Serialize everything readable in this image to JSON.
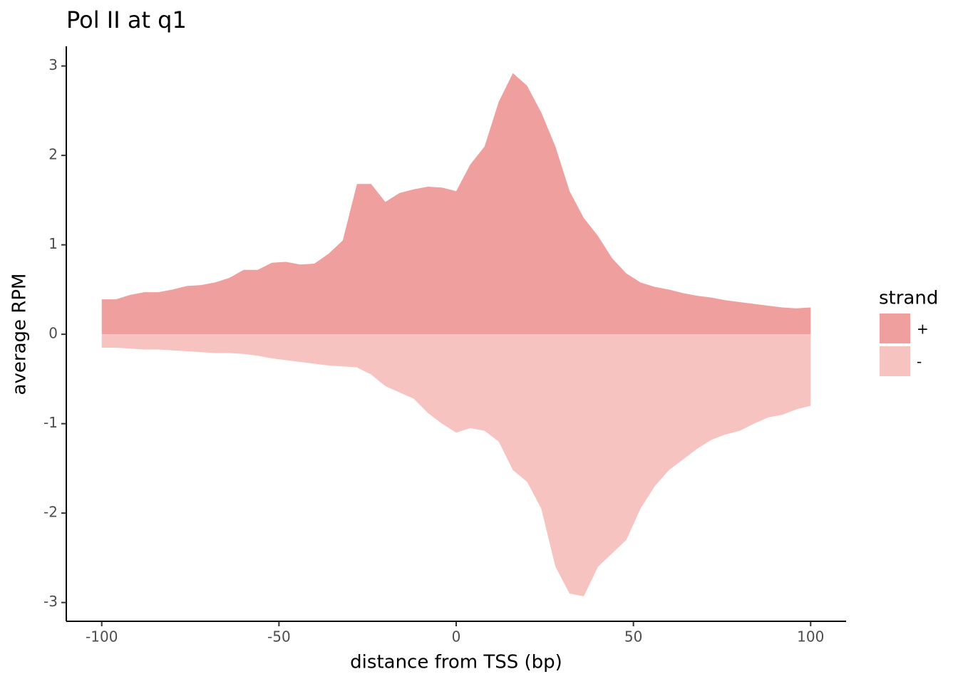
{
  "chart_data": {
    "type": "area",
    "title": "Pol II at q1",
    "x_label": "distance from TSS (bp)",
    "y_label": "average RPM",
    "legend_title": "strand",
    "legend_position": "right",
    "x": [
      -100,
      -96,
      -92,
      -88,
      -84,
      -80,
      -76,
      -72,
      -68,
      -64,
      -60,
      -56,
      -52,
      -48,
      -44,
      -40,
      -36,
      -32,
      -28,
      -24,
      -20,
      -16,
      -12,
      -8,
      -4,
      0,
      4,
      8,
      12,
      16,
      20,
      24,
      28,
      32,
      36,
      40,
      44,
      48,
      52,
      56,
      60,
      64,
      68,
      72,
      76,
      80,
      84,
      88,
      92,
      96,
      100
    ],
    "series": [
      {
        "name": "+",
        "color": "#f09f9f",
        "values": [
          0.39,
          0.39,
          0.44,
          0.47,
          0.47,
          0.5,
          0.54,
          0.55,
          0.58,
          0.63,
          0.72,
          0.72,
          0.8,
          0.81,
          0.78,
          0.79,
          0.9,
          1.05,
          1.68,
          1.68,
          1.48,
          1.58,
          1.62,
          1.65,
          1.64,
          1.6,
          1.9,
          2.1,
          2.6,
          2.92,
          2.78,
          2.48,
          2.1,
          1.6,
          1.3,
          1.1,
          0.85,
          0.68,
          0.58,
          0.53,
          0.5,
          0.46,
          0.43,
          0.41,
          0.38,
          0.36,
          0.34,
          0.32,
          0.3,
          0.29,
          0.3
        ]
      },
      {
        "name": "-",
        "color": "#f6c3c0",
        "values": [
          -0.15,
          -0.15,
          -0.16,
          -0.17,
          -0.17,
          -0.18,
          -0.19,
          -0.2,
          -0.21,
          -0.21,
          -0.22,
          -0.24,
          -0.27,
          -0.29,
          -0.31,
          -0.33,
          -0.35,
          -0.36,
          -0.37,
          -0.45,
          -0.58,
          -0.65,
          -0.72,
          -0.88,
          -1.0,
          -1.1,
          -1.05,
          -1.08,
          -1.2,
          -1.52,
          -1.65,
          -1.95,
          -2.6,
          -2.9,
          -2.93,
          -2.6,
          -2.45,
          -2.3,
          -1.95,
          -1.7,
          -1.52,
          -1.4,
          -1.28,
          -1.18,
          -1.12,
          -1.08,
          -1.0,
          -0.93,
          -0.9,
          -0.84,
          -0.8
        ]
      }
    ],
    "xlim": [
      -110,
      110
    ],
    "ylim": [
      -3.21,
      3.22
    ],
    "xticks": [
      -100,
      -50,
      0,
      50,
      100
    ],
    "yticks": [
      -3,
      -2,
      -1,
      0,
      1,
      2,
      3
    ],
    "grid": false
  }
}
